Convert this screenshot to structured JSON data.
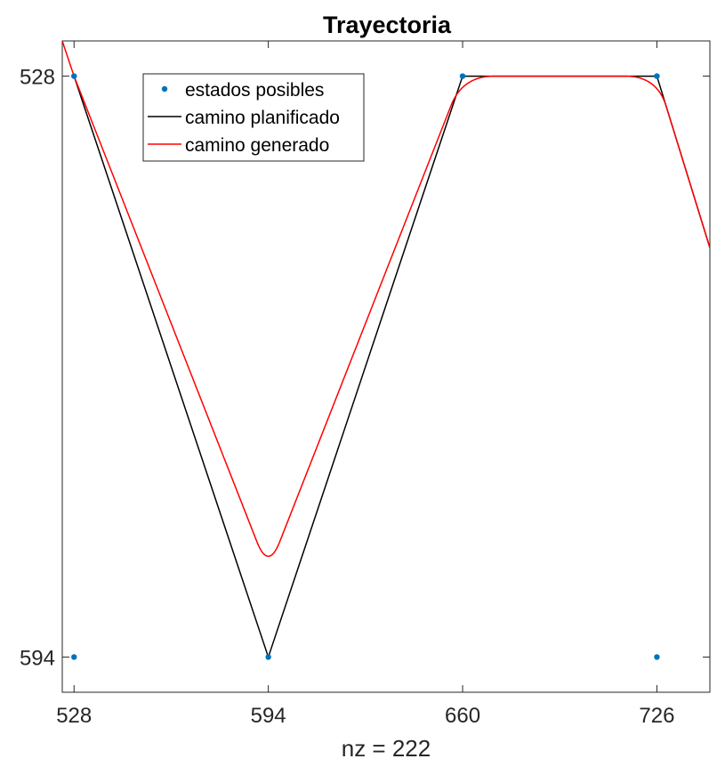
{
  "chart_data": {
    "type": "line",
    "title": "Trayectoria",
    "xlabel": "nz = 222",
    "ylabel": "",
    "x_ticks": [
      "528",
      "594",
      "660",
      "726"
    ],
    "y_ticks": [
      "528",
      "594"
    ],
    "xlim": [
      524,
      744
    ],
    "ylim": [
      524,
      598
    ],
    "y_reversed": true,
    "grid": false,
    "legend_position": "top-left",
    "series": [
      {
        "name": "estados posibles",
        "kind": "scatter",
        "color": "#0072BD",
        "points": [
          [
            528,
            528
          ],
          [
            528,
            594
          ],
          [
            594,
            594
          ],
          [
            660,
            528
          ],
          [
            726,
            528
          ],
          [
            726,
            594
          ]
        ]
      },
      {
        "name": "camino planificado",
        "kind": "line",
        "color": "#000000",
        "points": [
          [
            528,
            528
          ],
          [
            594,
            594
          ],
          [
            660,
            528
          ],
          [
            726,
            528
          ],
          [
            744,
            547.5
          ]
        ]
      },
      {
        "name": "camino generado",
        "kind": "smooth-line",
        "color": "#FF0000",
        "points": [
          [
            524,
            524
          ],
          [
            528,
            528
          ],
          [
            594,
            584.2
          ],
          [
            660,
            528
          ],
          [
            726,
            528
          ],
          [
            744,
            547.5
          ]
        ]
      }
    ]
  }
}
